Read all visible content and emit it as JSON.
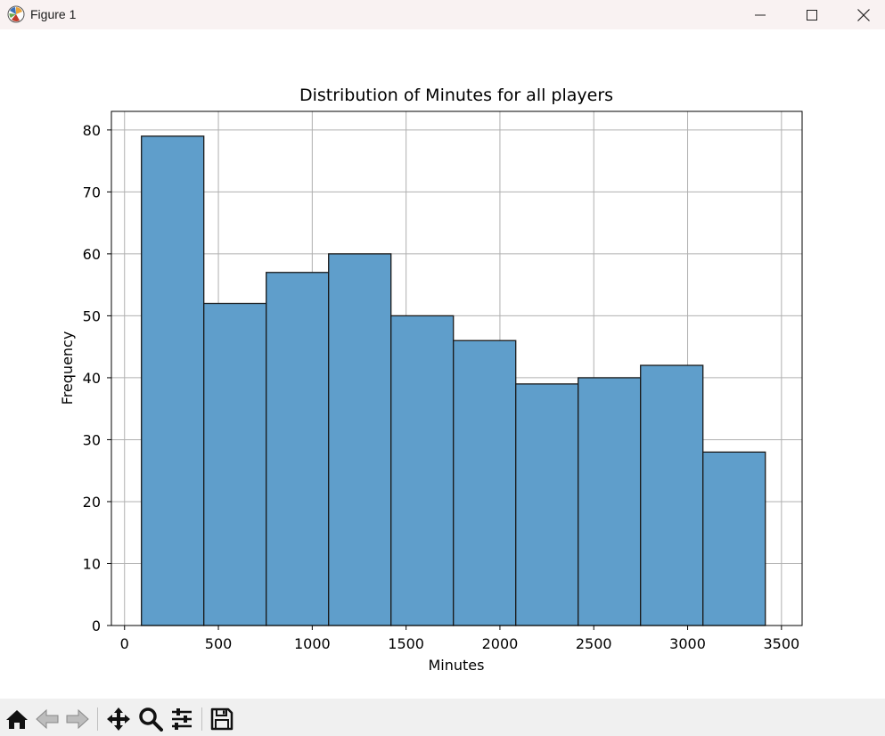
{
  "window": {
    "title": "Figure 1"
  },
  "toolbar": {
    "buttons": [
      {
        "name": "home",
        "icon": "home-icon"
      },
      {
        "name": "back",
        "icon": "arrow-left-icon"
      },
      {
        "name": "forward",
        "icon": "arrow-right-icon"
      },
      {
        "name": "pan",
        "icon": "move-icon"
      },
      {
        "name": "zoom",
        "icon": "search-icon"
      },
      {
        "name": "configure-subplots",
        "icon": "sliders-icon"
      },
      {
        "name": "save",
        "icon": "save-icon"
      }
    ]
  },
  "chart_data": {
    "type": "histogram",
    "title": "Distribution of Minutes for all players",
    "xlabel": "Minutes",
    "ylabel": "Frequency",
    "bin_edges": [
      90,
      422.4,
      754.8,
      1087.2,
      1419.6,
      1752,
      2084.4,
      2416.8,
      2749.2,
      3081.6,
      3414
    ],
    "values": [
      79,
      52,
      57,
      60,
      50,
      46,
      39,
      40,
      42,
      28
    ],
    "xlim": [
      -70,
      3610
    ],
    "ylim": [
      0,
      83
    ],
    "xticks": [
      0,
      500,
      1000,
      1500,
      2000,
      2500,
      3000,
      3500
    ],
    "xtick_labels": [
      "0",
      "500",
      "1000",
      "1500",
      "2000",
      "2500",
      "3000",
      "3500"
    ],
    "yticks": [
      0,
      10,
      20,
      30,
      40,
      50,
      60,
      70,
      80
    ],
    "ytick_labels": [
      "0",
      "10",
      "20",
      "30",
      "40",
      "50",
      "60",
      "70",
      "80"
    ],
    "grid": true,
    "bar_color": "#5f9ecb",
    "edge_color": "#1a1a1a",
    "grid_color": "#b0b0b0"
  }
}
